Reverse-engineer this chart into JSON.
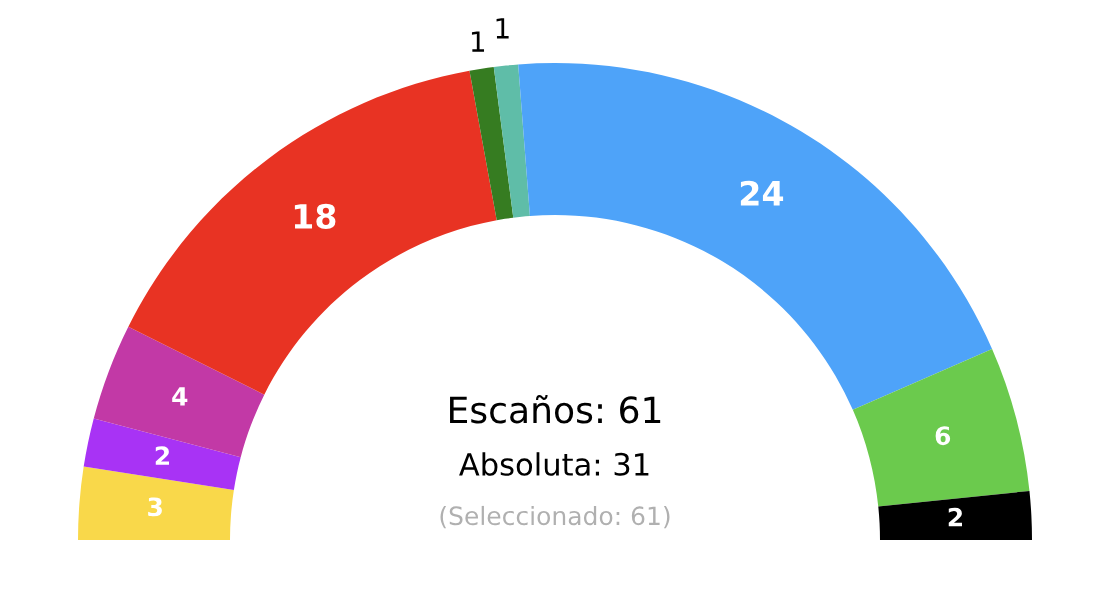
{
  "chart_data": {
    "type": "donut",
    "categories": [
      null,
      null,
      null,
      null,
      null,
      null,
      null,
      null,
      null
    ],
    "values": [
      3,
      2,
      4,
      18,
      1,
      1,
      24,
      6,
      2
    ],
    "colors": [
      "#f9d84a",
      "#a833f5",
      "#c239a6",
      "#e83323",
      "#367c21",
      "#5fbda8",
      "#4ea3f9",
      "#6bca4d",
      "#000000"
    ],
    "data_labels": true,
    "annotations": [
      "Escaños: 61",
      "Absoluta: 31",
      "(Seleccionado: 61)"
    ]
  }
}
